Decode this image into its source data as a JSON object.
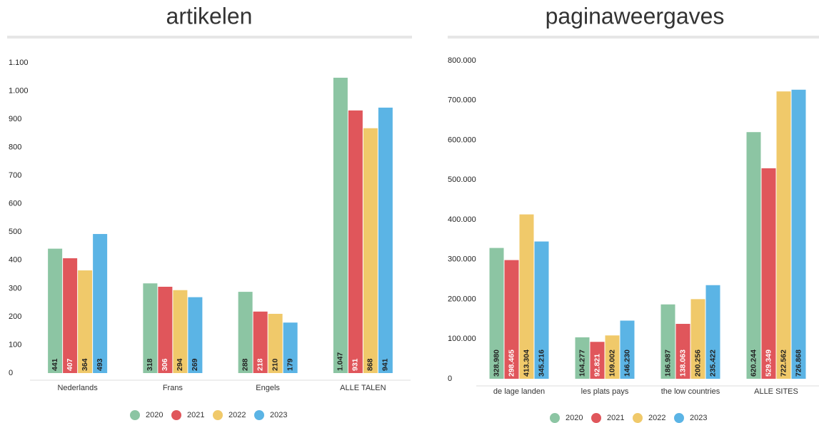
{
  "chart_data": [
    {
      "type": "bar",
      "title": "artikelen",
      "categories": [
        "Nederlands",
        "Frans",
        "Engels",
        "ALLE TALEN"
      ],
      "series": [
        {
          "name": "2020",
          "color": "#8cc5a3",
          "values": [
            441,
            318,
            288,
            1047
          ],
          "value_labels": [
            "441",
            "318",
            "288",
            "1.047"
          ]
        },
        {
          "name": "2021",
          "color": "#e0565b",
          "values": [
            407,
            306,
            218,
            931
          ]
        },
        {
          "name": "2022",
          "color": "#f0c96a",
          "values": [
            364,
            294,
            210,
            868
          ]
        },
        {
          "name": "2023",
          "color": "#5bb4e5",
          "values": [
            493,
            269,
            179,
            941
          ]
        }
      ],
      "ylim": [
        0,
        1100
      ],
      "yticks": [
        0,
        100,
        200,
        300,
        400,
        500,
        600,
        700,
        800,
        900,
        {
          "value": 1000,
          "label": "1.000"
        },
        {
          "value": 1100,
          "label": "1.100"
        }
      ]
    },
    {
      "type": "bar",
      "title": "paginaweergaves",
      "categories": [
        "de lage landen",
        "les plats pays",
        "the low countries",
        "ALLE SITES"
      ],
      "series": [
        {
          "name": "2020",
          "color": "#8cc5a3",
          "values": [
            328980,
            104277,
            186987,
            620244
          ],
          "value_labels": [
            "328.980",
            "104.277",
            "186.987",
            "620.244"
          ]
        },
        {
          "name": "2021",
          "color": "#e0565b",
          "values": [
            298465,
            92821,
            138063,
            529349
          ],
          "value_labels": [
            "298.465",
            "92.821",
            "138.063",
            "529.349"
          ]
        },
        {
          "name": "2022",
          "color": "#f0c96a",
          "values": [
            413304,
            109002,
            200256,
            722562
          ],
          "value_labels": [
            "413.304",
            "109.002",
            "200.256",
            "722.562"
          ]
        },
        {
          "name": "2023",
          "color": "#5bb4e5",
          "values": [
            345216,
            146230,
            235422,
            726868
          ],
          "value_labels": [
            "345.216",
            "146.230",
            "235.422",
            "726.868"
          ]
        }
      ],
      "ylim": [
        0,
        800000
      ],
      "yticks": [
        0,
        {
          "value": 100000,
          "label": "100.000"
        },
        {
          "value": 200000,
          "label": "200.000"
        },
        {
          "value": 300000,
          "label": "300.000"
        },
        {
          "value": 400000,
          "label": "400.000"
        },
        {
          "value": 500000,
          "label": "500.000"
        },
        {
          "value": 600000,
          "label": "600.000"
        },
        {
          "value": 700000,
          "label": "700.000"
        },
        {
          "value": 800000,
          "label": "800.000"
        }
      ]
    }
  ]
}
